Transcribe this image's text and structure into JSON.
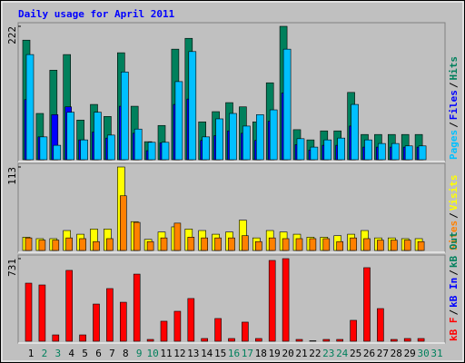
{
  "chart_data": [
    {
      "type": "bar",
      "title": "Daily usage for April 2011",
      "ylim": [
        0,
        222
      ],
      "yticks": [
        222
      ],
      "legend_separator": "/",
      "series": [
        {
          "name": "Hits",
          "color": "#00805c",
          "values": [
            199,
            77,
            149,
            175,
            66,
            92,
            72,
            178,
            89,
            30,
            57,
            184,
            202,
            63,
            80,
            95,
            88,
            63,
            128,
            222,
            50,
            33,
            48,
            48,
            112,
            42,
            42,
            42,
            42,
            42,
            null
          ]
        },
        {
          "name": "Files",
          "color": "#0000ff",
          "values": [
            100,
            38,
            75,
            88,
            33,
            46,
            36,
            89,
            44,
            15,
            28,
            92,
            101,
            32,
            40,
            48,
            44,
            32,
            64,
            111,
            25,
            16,
            24,
            24,
            56,
            21,
            21,
            21,
            21,
            21,
            null
          ]
        },
        {
          "name": "Pages",
          "color": "#00c0ff",
          "values": [
            175,
            38,
            24,
            79,
            33,
            79,
            41,
            146,
            51,
            29,
            29,
            130,
            180,
            38,
            68,
            77,
            56,
            75,
            83,
            184,
            35,
            21,
            33,
            36,
            92,
            33,
            27,
            27,
            23,
            23,
            null
          ]
        }
      ]
    },
    {
      "type": "bar",
      "ylim": [
        0,
        113
      ],
      "yticks": [
        113
      ],
      "series": [
        {
          "name": "Visits",
          "color": "#ffff00",
          "values": [
            18,
            16,
            16,
            27,
            22,
            29,
            29,
            113,
            39,
            15,
            25,
            32,
            29,
            27,
            22,
            25,
            41,
            17,
            27,
            25,
            22,
            18,
            18,
            20,
            22,
            27,
            17,
            17,
            16,
            16,
            null
          ]
        },
        {
          "name": "Sites",
          "color": "#ff8000",
          "values": [
            17,
            14,
            14,
            17,
            16,
            12,
            16,
            74,
            38,
            12,
            17,
            37,
            18,
            17,
            17,
            17,
            20,
            12,
            17,
            16,
            16,
            16,
            16,
            12,
            17,
            16,
            14,
            14,
            14,
            12,
            null
          ]
        }
      ]
    },
    {
      "type": "bar",
      "ylim": [
        0,
        731
      ],
      "yticks": [
        731
      ],
      "categories": [
        "1",
        "2",
        "3",
        "4",
        "5",
        "6",
        "7",
        "8",
        "9",
        "10",
        "11",
        "12",
        "13",
        "14",
        "15",
        "16",
        "17",
        "18",
        "19",
        "20",
        "21",
        "22",
        "23",
        "24",
        "25",
        "26",
        "27",
        "28",
        "29",
        "30",
        "31"
      ],
      "highlight_categories": [
        1,
        2,
        8,
        9,
        15,
        16,
        22,
        23,
        29,
        30
      ],
      "label_color": "#000000",
      "highlight_color": "#00805c",
      "series": [
        {
          "name": "kB F",
          "color": "#ff0000",
          "values": [
            514,
            498,
            56,
            627,
            56,
            329,
            466,
            345,
            594,
            16,
            177,
            265,
            378,
            24,
            201,
            24,
            169,
            24,
            715,
            731,
            16,
            4,
            16,
            16,
            185,
            651,
            289,
            16,
            24,
            24,
            null
          ]
        }
      ],
      "other_legend_entries": [
        {
          "name": "kB In",
          "color": "#0000ff"
        },
        {
          "name": "kB Out",
          "color": "#00805c"
        }
      ]
    }
  ]
}
